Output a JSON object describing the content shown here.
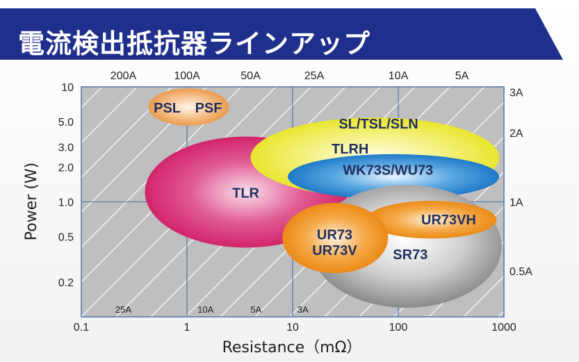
{
  "title": "電流検出抵抗器ラインアップ",
  "colors": {
    "banner": "#1f2f8c",
    "frame": "#5a79a8",
    "label": "#22305e"
  },
  "chart_data": {
    "type": "scatter",
    "xlabel": "Resistance（mΩ）",
    "ylabel": "Power (W)",
    "x_scale": "log",
    "y_scale": "log",
    "xlim": [
      0.1,
      1000
    ],
    "ylim": [
      0.1,
      10
    ],
    "grid": true,
    "x_ticks": [
      "0.1",
      "1",
      "10",
      "100",
      "1000"
    ],
    "x_tick_values": [
      0.1,
      1,
      10,
      100,
      1000
    ],
    "y_ticks": [
      "10",
      "5.0",
      "3.0",
      "2.0",
      "1.0",
      "0.5",
      "0.2"
    ],
    "y_tick_values": [
      10,
      5,
      3,
      2,
      1,
      0.5,
      0.2
    ],
    "current_lines": [
      {
        "label": "200A",
        "axis": "top",
        "value": 0.25
      },
      {
        "label": "100A",
        "axis": "top",
        "value": 1
      },
      {
        "label": "50A",
        "axis": "top",
        "value": 4
      },
      {
        "label": "25A",
        "axis": "top",
        "value": 16
      },
      {
        "label": "10A",
        "axis": "top",
        "value": 100
      },
      {
        "label": "5A",
        "axis": "top",
        "value": 400
      },
      {
        "label": "3A",
        "axis": "right",
        "value": 9
      },
      {
        "label": "2A",
        "axis": "right",
        "value": 4
      },
      {
        "label": "1A",
        "axis": "right",
        "value": 1
      },
      {
        "label": "0.5A",
        "axis": "right",
        "value": 0.25
      },
      {
        "label": "25A",
        "axis": "bottom",
        "value": 0.25
      },
      {
        "label": "10A",
        "axis": "bottom",
        "value": 1.5
      },
      {
        "label": "5A",
        "axis": "bottom",
        "value": 4.5
      },
      {
        "label": "3A",
        "axis": "bottom",
        "value": 12.5
      }
    ],
    "series": [
      {
        "name": "TLR",
        "color": "#d6286e",
        "r_range": [
          0.4,
          33
        ],
        "p_range": [
          0.4,
          3.7
        ],
        "label_at": [
          3.6,
          1.2
        ]
      },
      {
        "name": "SL/TSL/SLN",
        "color": "#ecea3a",
        "r_range": [
          4,
          900
        ],
        "p_range": [
          1.1,
          5.4
        ],
        "label_at": [
          65,
          4.8
        ]
      },
      {
        "name": "TLRH",
        "color": "#ecea3a",
        "r_range": [
          4,
          900
        ],
        "p_range": [
          1.1,
          5.4
        ],
        "label_at": [
          35,
          2.9
        ]
      },
      {
        "name": "WK73S/WU73",
        "color": "#2b88cf",
        "r_range": [
          9,
          900
        ],
        "p_range": [
          1.05,
          2.6
        ],
        "label_at": [
          80,
          1.9
        ]
      },
      {
        "name": "SR73",
        "color": "#8e8e8e",
        "r_range": [
          15,
          950
        ],
        "p_range": [
          0.12,
          1.4
        ],
        "label_at": [
          130,
          0.35
        ]
      },
      {
        "name": "UR73VH",
        "color": "#f0941e",
        "r_range": [
          50,
          850
        ],
        "p_range": [
          0.48,
          1.02
        ],
        "label_at": [
          300,
          0.7
        ]
      },
      {
        "name": "UR73",
        "color": "#f0941e",
        "r_range": [
          8,
          80
        ],
        "p_range": [
          0.24,
          0.98
        ],
        "label_at": [
          25,
          0.52
        ]
      },
      {
        "name": "UR73V",
        "color": "#f0941e",
        "r_range": [
          8,
          80
        ],
        "p_range": [
          0.24,
          0.98
        ],
        "label_at": [
          25,
          0.38
        ]
      },
      {
        "name": "PSL",
        "color": "#f0a85c",
        "r_range": [
          0.43,
          2.5
        ],
        "p_range": [
          4.6,
          9.7
        ],
        "label_at": [
          0.65,
          6.6
        ]
      },
      {
        "name": "PSF",
        "color": "#f0a85c",
        "r_range": [
          0.43,
          2.5
        ],
        "p_range": [
          4.6,
          9.7
        ],
        "label_at": [
          1.6,
          6.6
        ]
      }
    ]
  }
}
